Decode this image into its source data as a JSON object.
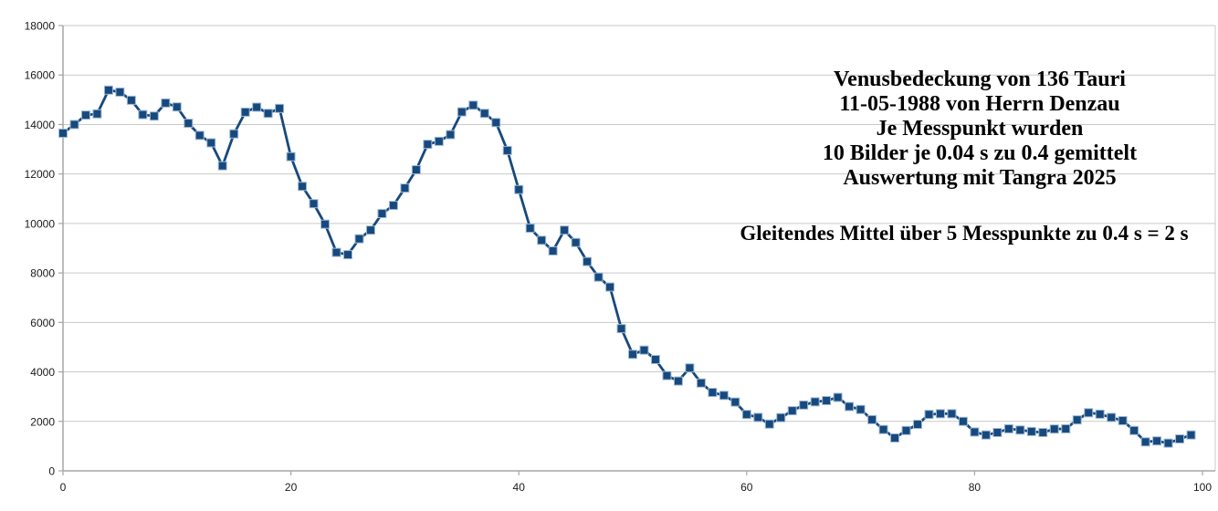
{
  "annotation": {
    "lines": [
      "Venusbedeckung von 136 Tauri",
      "11-05-1988 von Herrn Denzau",
      "Je Messpunkt wurden",
      "10 Bilder je 0.04 s zu 0.4 gemittelt",
      "Auswertung mit Tangra 2025"
    ],
    "footnote": "Gleitendes Mittel über 5 Messpunkte zu 0.4 s = 2 s"
  },
  "chart_data": {
    "type": "line",
    "marker": "square",
    "title": "",
    "xlabel": "",
    "ylabel": "",
    "grid": "horizontal",
    "legend": "none",
    "x_start": 0,
    "x_step": 1,
    "xlim": [
      0,
      101
    ],
    "ylim": [
      0,
      18000
    ],
    "x_ticks": [
      0,
      20,
      40,
      60,
      80,
      100
    ],
    "y_ticks": [
      0,
      2000,
      4000,
      6000,
      8000,
      10000,
      12000,
      14000,
      16000,
      18000
    ],
    "values": [
      13650,
      14000,
      14380,
      14430,
      15390,
      15310,
      14980,
      14400,
      14340,
      14870,
      14710,
      14050,
      13560,
      13260,
      12330,
      13620,
      14500,
      14700,
      14450,
      14650,
      12700,
      11500,
      10800,
      9970,
      8830,
      8740,
      9380,
      9730,
      10400,
      10730,
      11430,
      12170,
      13200,
      13320,
      13590,
      14510,
      14780,
      14450,
      14080,
      12950,
      11370,
      9810,
      9320,
      8890,
      9730,
      9230,
      8460,
      7830,
      7430,
      5750,
      4710,
      4880,
      4500,
      3850,
      3630,
      4160,
      3550,
      3170,
      3050,
      2780,
      2280,
      2160,
      1890,
      2150,
      2430,
      2660,
      2790,
      2840,
      2970,
      2600,
      2480,
      2070,
      1670,
      1330,
      1630,
      1880,
      2280,
      2310,
      2310,
      2000,
      1570,
      1450,
      1550,
      1700,
      1650,
      1590,
      1550,
      1690,
      1700,
      2060,
      2350,
      2290,
      2160,
      2030,
      1630,
      1170,
      1210,
      1120,
      1290,
      1450
    ],
    "colors": {
      "series": "#17497D",
      "marker_border": "#9FBBD8",
      "gridline": "#C9C9C9",
      "axis": "#A6A6A6",
      "tick_label": "#1A1A1A",
      "background": "#FFFFFF"
    }
  }
}
